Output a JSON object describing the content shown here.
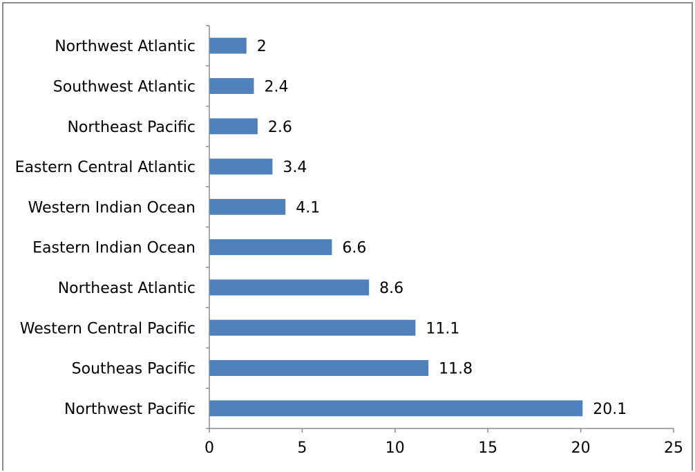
{
  "chart_data": {
    "type": "bar",
    "orientation": "horizontal",
    "categories": [
      "Northwest Atlantic",
      "Southwest Atlantic",
      "Northeast Pacific",
      "Eastern Central Atlantic",
      "Western Indian Ocean",
      "Eastern Indian Ocean",
      "Northeast Atlantic",
      "Western Central Pacific",
      "Southeas Pacific",
      "Northwest Pacific"
    ],
    "values": [
      2,
      2.4,
      2.6,
      3.4,
      4.1,
      6.6,
      8.6,
      11.1,
      11.8,
      20.1
    ],
    "data_labels": [
      "2",
      "2.4",
      "2.6",
      "3.4",
      "4.1",
      "6.6",
      "8.6",
      "11.1",
      "11.8",
      "20.1"
    ],
    "xlim": [
      0,
      25
    ],
    "xticks": [
      0,
      5,
      10,
      15,
      20,
      25
    ],
    "xtick_labels": [
      "0",
      "5",
      "10",
      "15",
      "20",
      "25"
    ],
    "title": "",
    "xlabel": "",
    "ylabel": "",
    "grid": false,
    "legend": "none",
    "bar_color": "#4F81BD"
  }
}
